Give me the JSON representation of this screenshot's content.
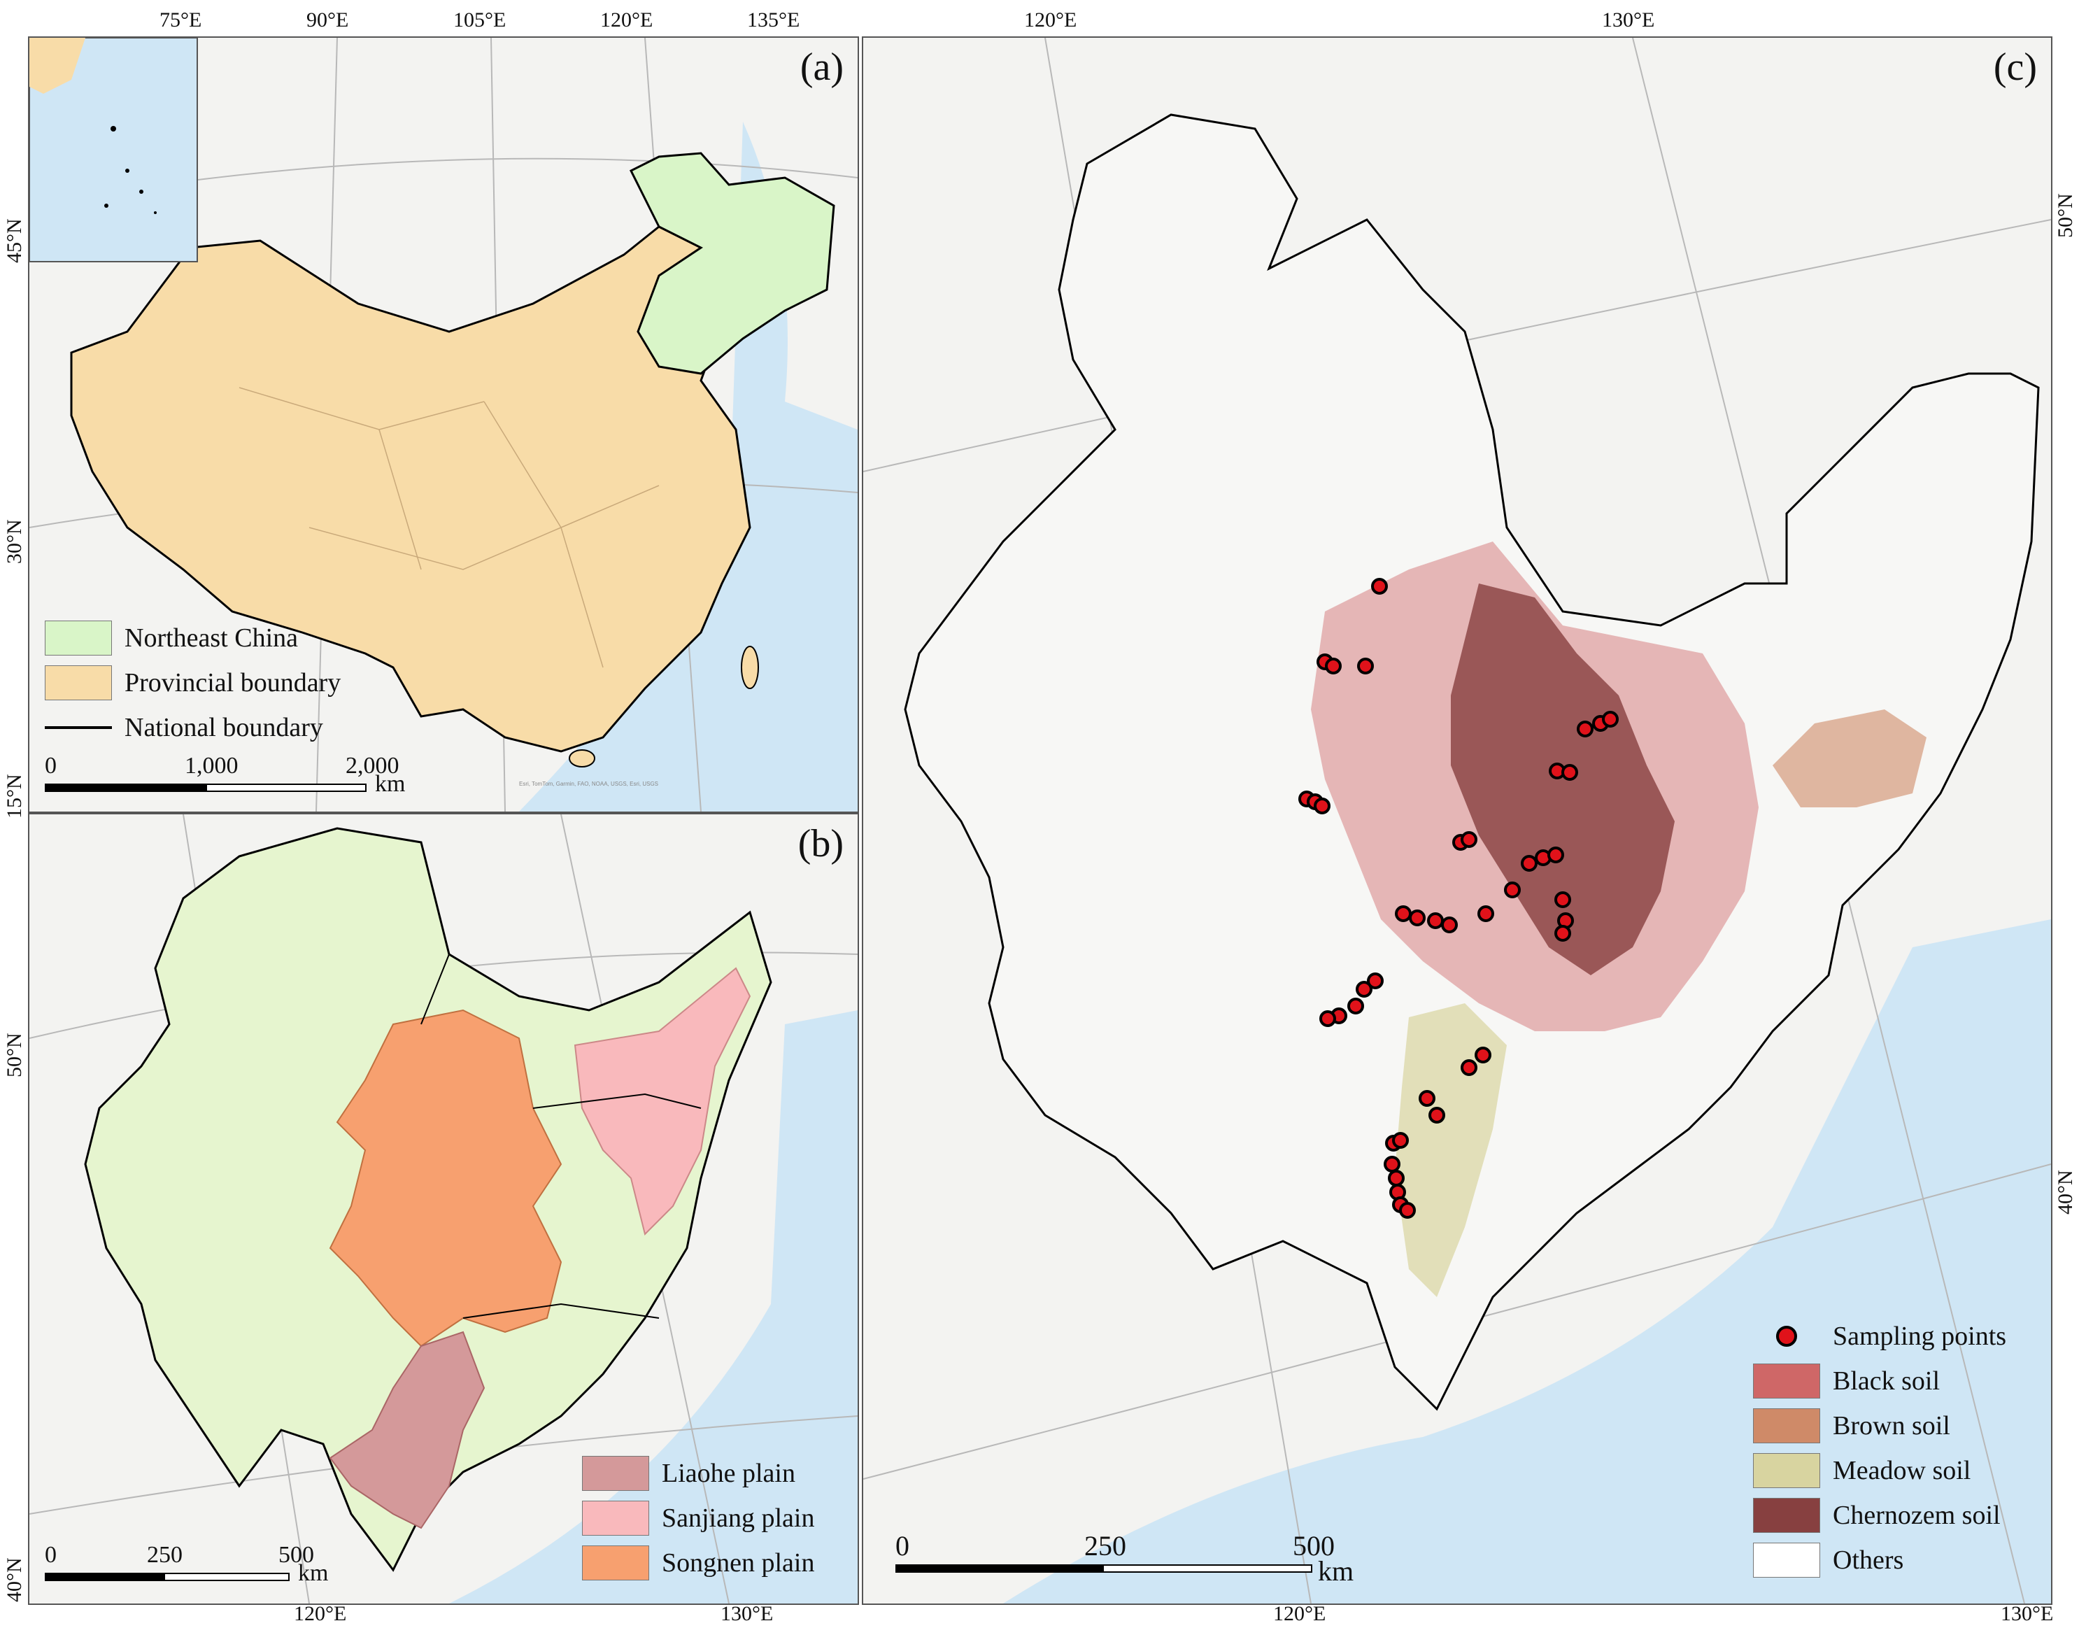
{
  "panel_a": {
    "label": "(a)",
    "top_ticks": [
      "75°E",
      "90°E",
      "105°E",
      "120°E",
      "135°E"
    ],
    "left_ticks": [
      "45°N",
      "30°N",
      "15°N"
    ],
    "legend": [
      {
        "label": "Northeast China",
        "color": "#d9f5c8"
      },
      {
        "label": "Provincial boundary",
        "color": "#f8dca8"
      },
      {
        "label": "National boundary",
        "color": "#000000"
      }
    ],
    "scale": {
      "labels": [
        "0",
        "1,000",
        "2,000"
      ],
      "unit": "km"
    },
    "attribution": "Esri, TomTom, Garmin, FAO, NOAA, USGS, Esri, USGS"
  },
  "panel_b": {
    "label": "(b)",
    "left_ticks": [
      "50°N",
      "40°N"
    ],
    "bottom_ticks": [
      "120°E",
      "130°E"
    ],
    "legend": [
      {
        "label": "Liaohe plain",
        "color": "#d4999a"
      },
      {
        "label": "Sanjiang plain",
        "color": "#f9b9bc"
      },
      {
        "label": "Songnen plain",
        "color": "#f7a06f"
      }
    ],
    "scale": {
      "labels": [
        "0",
        "250",
        "500"
      ],
      "unit": "km"
    }
  },
  "panel_c": {
    "label": "(c)",
    "top_ticks": [
      "120°E",
      "130°E"
    ],
    "right_ticks": [
      "50°N",
      "40°N"
    ],
    "bottom_ticks": [
      "120°E",
      "130°E"
    ],
    "legend": [
      {
        "label": "Sampling points",
        "color": "#e0121a",
        "kind": "point"
      },
      {
        "label": "Black soil",
        "color": "#cf6767"
      },
      {
        "label": "Brown soil",
        "color": "#cf8a68"
      },
      {
        "label": "Meadow soil",
        "color": "#d8d4a0"
      },
      {
        "label": "Chernozem soil",
        "color": "#874040"
      },
      {
        "label": "Others",
        "color": "#ffffff"
      }
    ],
    "scale": {
      "labels": [
        "0",
        "250",
        "500"
      ],
      "unit": "km"
    }
  },
  "colors": {
    "sea": "#cfe6f5",
    "land": "#f2f2f0",
    "border": "#000000"
  }
}
